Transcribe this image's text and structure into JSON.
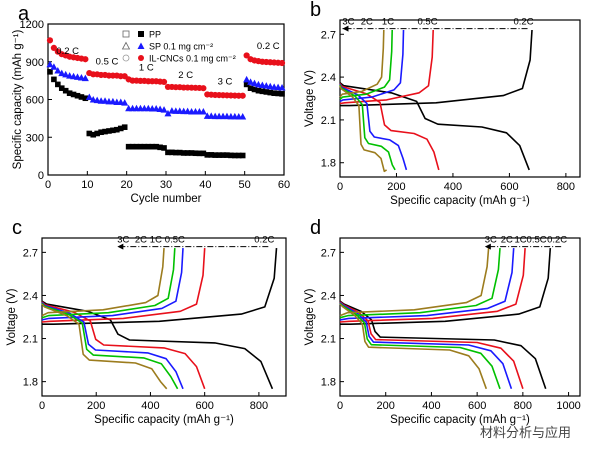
{
  "watermark": "材料分析与应用",
  "chart_data": [
    {
      "panel": "a",
      "type": "scatter",
      "xlabel": "Cycle number",
      "ylabel": "Specific capacity (mAh g⁻¹)",
      "xlim": [
        0,
        60
      ],
      "ylim": [
        0,
        1200
      ],
      "xticks": [
        0,
        10,
        20,
        30,
        40,
        50,
        60
      ],
      "yticks": [
        0,
        300,
        600,
        900,
        1200
      ],
      "legend": [
        "PP",
        "SP 0.1 mg cm⁻²",
        "IL-CNCs 0.1 mg cm⁻²"
      ],
      "rate_labels": [
        "0.2 C",
        "0.5 C",
        "1 C",
        "2 C",
        "3 C",
        "0.2 C"
      ],
      "series": [
        {
          "name": "PP",
          "color": "#000000",
          "marker": "square",
          "values": [
            820,
            760,
            720,
            690,
            670,
            650,
            640,
            630,
            620,
            610,
            330,
            320,
            330,
            340,
            345,
            350,
            355,
            360,
            370,
            380,
            225,
            225,
            225,
            225,
            225,
            225,
            225,
            225,
            220,
            215,
            180,
            180,
            178,
            178,
            175,
            175,
            175,
            173,
            172,
            172,
            160,
            160,
            158,
            158,
            158,
            158,
            156,
            155,
            155,
            155,
            720,
            690,
            680,
            670,
            665,
            660,
            655,
            650,
            648,
            645
          ]
        },
        {
          "name": "SP 0.1 mg cm⁻²",
          "color": "#1a1aff",
          "marker": "triangle",
          "values": [
            880,
            860,
            830,
            810,
            800,
            790,
            785,
            780,
            775,
            770,
            620,
            600,
            595,
            590,
            590,
            585,
            585,
            580,
            580,
            575,
            530,
            530,
            530,
            530,
            530,
            530,
            528,
            528,
            525,
            520,
            490,
            512,
            510,
            510,
            508,
            508,
            505,
            505,
            505,
            505,
            470,
            470,
            468,
            468,
            468,
            468,
            466,
            466,
            465,
            465,
            760,
            740,
            730,
            720,
            715,
            710,
            705,
            700,
            698,
            695
          ]
        },
        {
          "name": "IL-CNCs 0.1 mg cm⁻²",
          "color": "#e8101b",
          "marker": "circle",
          "values": [
            1070,
            1010,
            980,
            960,
            950,
            940,
            935,
            930,
            925,
            920,
            810,
            800,
            800,
            795,
            795,
            790,
            790,
            790,
            785,
            785,
            760,
            750,
            750,
            748,
            748,
            745,
            745,
            745,
            742,
            740,
            700,
            700,
            698,
            698,
            695,
            695,
            694,
            693,
            692,
            690,
            640,
            638,
            636,
            635,
            634,
            633,
            632,
            631,
            630,
            630,
            950,
            920,
            910,
            905,
            900,
            898,
            896,
            894,
            892,
            890
          ]
        }
      ]
    },
    {
      "panel": "b",
      "type": "line",
      "xlabel": "Specific capacity (mAh g⁻¹)",
      "ylabel": "Voltage (V)",
      "xlim": [
        0,
        850
      ],
      "ylim": [
        1.7,
        2.8
      ],
      "xticks": [
        0,
        200,
        400,
        600,
        800
      ],
      "yticks": [
        1.8,
        2.1,
        2.4,
        2.7
      ],
      "rate_labels": [
        "3C",
        "2C",
        "1C",
        "0.5C",
        "0.2C"
      ],
      "series": [
        {
          "name": "0.2C",
          "color": "#000000",
          "discharge_end": 670,
          "charge_end": 680
        },
        {
          "name": "0.5C",
          "color": "#e8101b",
          "discharge_end": 350,
          "charge_end": 330
        },
        {
          "name": "1C",
          "color": "#1a1aff",
          "discharge_end": 235,
          "charge_end": 225
        },
        {
          "name": "2C",
          "color": "#00c000",
          "discharge_end": 195,
          "charge_end": 185
        },
        {
          "name": "3C",
          "color": "#9c7c1e",
          "discharge_end": 165,
          "charge_end": 155
        }
      ]
    },
    {
      "panel": "c",
      "type": "line",
      "xlabel": "Specific capacity (mAh g⁻¹)",
      "ylabel": "Voltage (V)",
      "xlim": [
        0,
        900
      ],
      "ylim": [
        1.7,
        2.8
      ],
      "xticks": [
        0,
        200,
        400,
        600,
        800
      ],
      "yticks": [
        1.8,
        2.1,
        2.4,
        2.7
      ],
      "rate_labels": [
        "3C",
        "2C",
        "1C",
        "0.5C",
        "0.2C"
      ],
      "series": [
        {
          "name": "0.2C",
          "color": "#000000",
          "discharge_end": 850,
          "charge_end": 865
        },
        {
          "name": "0.5C",
          "color": "#e8101b",
          "discharge_end": 600,
          "charge_end": 600
        },
        {
          "name": "1C",
          "color": "#1a1aff",
          "discharge_end": 520,
          "charge_end": 520
        },
        {
          "name": "2C",
          "color": "#00c000",
          "discharge_end": 500,
          "charge_end": 490
        },
        {
          "name": "3C",
          "color": "#9c7c1e",
          "discharge_end": 460,
          "charge_end": 450
        }
      ]
    },
    {
      "panel": "d",
      "type": "line",
      "xlabel": "Specific capacity (mAh g⁻¹)",
      "ylabel": "Voltage (V)",
      "xlim": [
        0,
        1050
      ],
      "ylim": [
        1.7,
        2.8
      ],
      "xticks": [
        0,
        200,
        400,
        600,
        800,
        1000
      ],
      "yticks": [
        1.8,
        2.1,
        2.4,
        2.7
      ],
      "rate_labels": [
        "3C",
        "2C",
        "1C",
        "0.5C",
        "0.2C"
      ],
      "series": [
        {
          "name": "0.2C",
          "color": "#000000",
          "discharge_end": 900,
          "charge_end": 920
        },
        {
          "name": "0.5C",
          "color": "#e8101b",
          "discharge_end": 800,
          "charge_end": 810
        },
        {
          "name": "1C",
          "color": "#1a1aff",
          "discharge_end": 750,
          "charge_end": 760
        },
        {
          "name": "2C",
          "color": "#00c000",
          "discharge_end": 700,
          "charge_end": 700
        },
        {
          "name": "3C",
          "color": "#9c7c1e",
          "discharge_end": 640,
          "charge_end": 650
        }
      ]
    }
  ]
}
